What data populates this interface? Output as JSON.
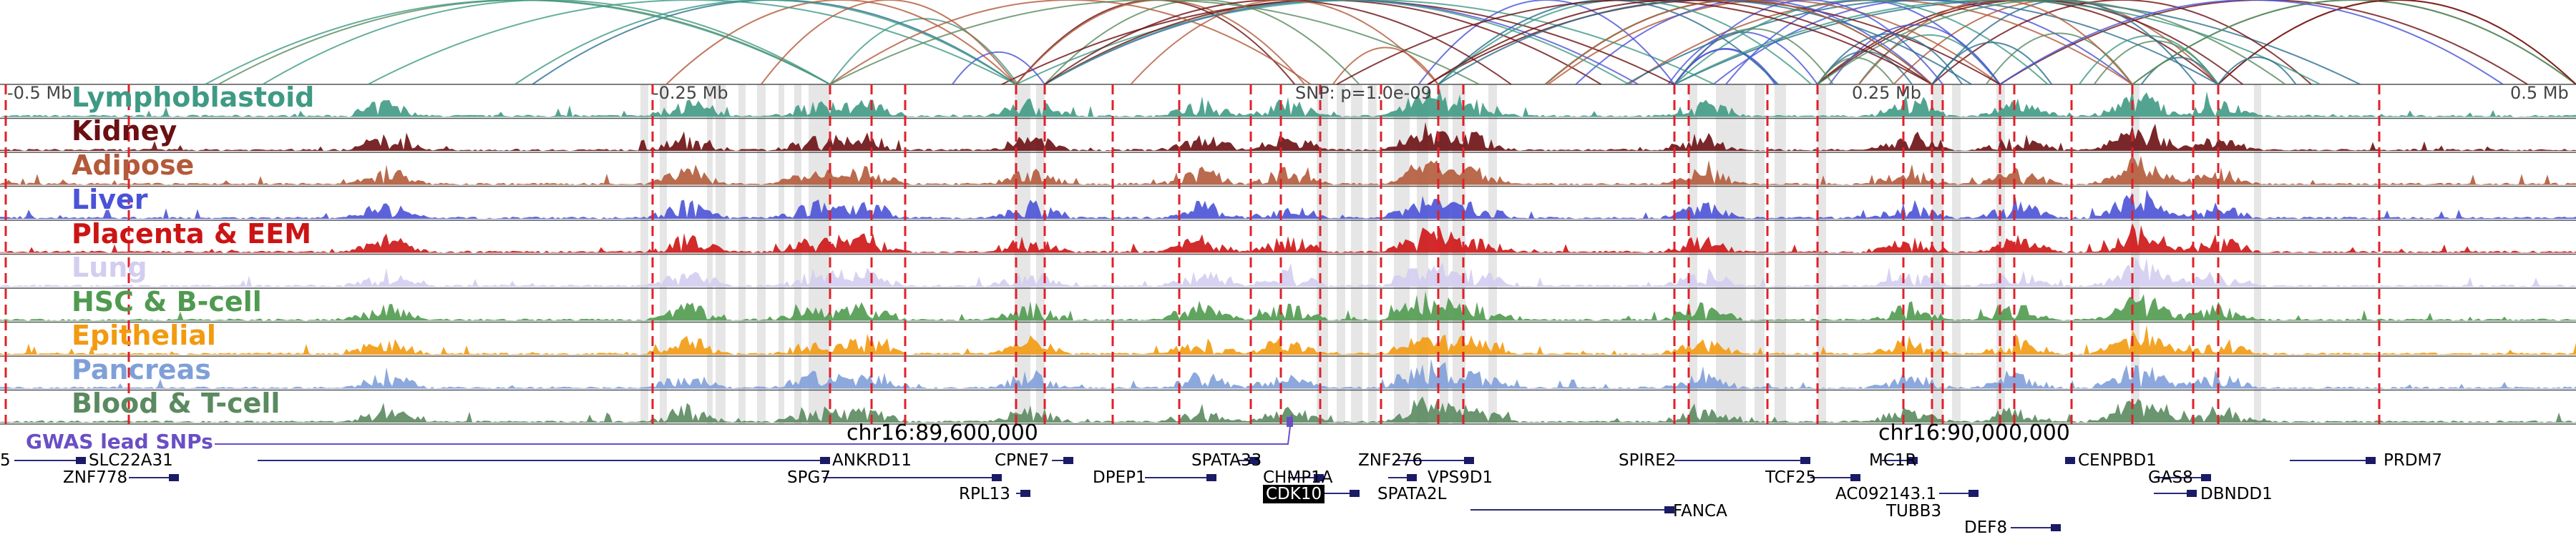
{
  "axis": {
    "left_label": "-0.5 Mb",
    "mid_left_label": "-0.25 Mb",
    "snp_label": "SNP: p=1.0e-09",
    "mid_right_label": "0.25 Mb",
    "right_label": "0.5 Mb"
  },
  "tracks": [
    {
      "name": "Lymphoblastoid",
      "color": "#3f9a84"
    },
    {
      "name": "Kidney",
      "color": "#6b0f12"
    },
    {
      "name": "Adipose",
      "color": "#b35a3a"
    },
    {
      "name": "Liver",
      "color": "#4a52d6"
    },
    {
      "name": "Placenta & EEM",
      "color": "#cc1414"
    },
    {
      "name": "Lung",
      "color": "#d3cdef"
    },
    {
      "name": "HSC & B-cell",
      "color": "#4f9a4f"
    },
    {
      "name": "Epithelial",
      "color": "#f29a10"
    },
    {
      "name": "Pancreas",
      "color": "#7f9fd8"
    },
    {
      "name": "Blood & T-cell",
      "color": "#5a8a5f"
    }
  ],
  "coordinates": {
    "left": "chr16:89,600,000",
    "right": "chr16:90,000,000"
  },
  "gwas": {
    "label": "GWAS lead SNPs",
    "color": "#6a4fc4"
  },
  "genes": [
    "5",
    "SLC22A31",
    "ZNF778",
    "ANKRD11",
    "SPG7",
    "CPNE7",
    "RPL13",
    "DPEP1",
    "SPATA33",
    "CHMP1A",
    "CDK10",
    "ZNF276",
    "VPS9D1",
    "SPATA2L",
    "SPIRE2",
    "FANCA",
    "TCF25",
    "MC1R",
    "AC092143.1",
    "TUBB3",
    "DEF8",
    "CENPBD1",
    "GAS8",
    "DBNDD1",
    "PRDM7"
  ],
  "highlighted_gene": "CDK10"
}
